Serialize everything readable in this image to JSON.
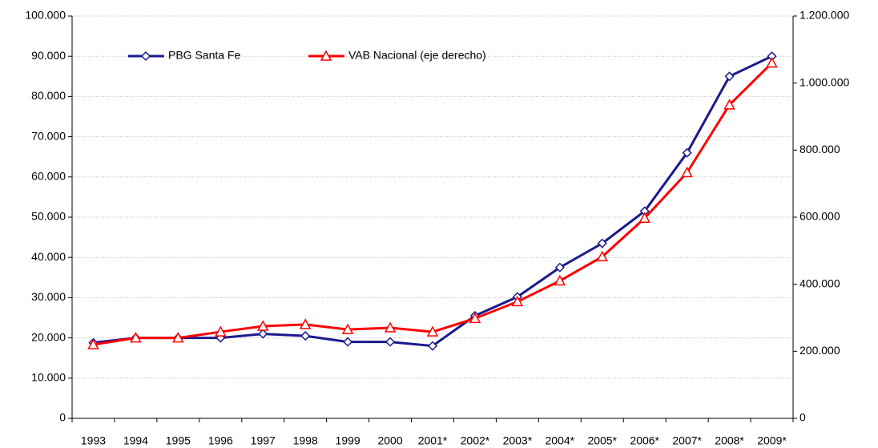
{
  "chart_data": {
    "type": "line",
    "categories": [
      "1993",
      "1994",
      "1995",
      "1996",
      "1997",
      "1998",
      "1999",
      "2000",
      "2001*",
      "2002*",
      "2003*",
      "2004*",
      "2005*",
      "2006*",
      "2007*",
      "2008*",
      "2009*"
    ],
    "series": [
      {
        "name": "PBG Santa Fe",
        "color": "#1a1a8c",
        "marker": "diamond",
        "values": [
          18800,
          20000,
          20000,
          20000,
          21000,
          20500,
          19000,
          19000,
          18000,
          25500,
          30200,
          37500,
          43500,
          51500,
          66000,
          85000,
          90000
        ]
      },
      {
        "name": "VAB Nacional (eje derecho)",
        "color": "#ff0000",
        "marker": "triangle",
        "axis": "y2",
        "values": [
          220000,
          240000,
          240000,
          258000,
          275000,
          280000,
          265000,
          270000,
          258000,
          298000,
          348000,
          410000,
          482000,
          597000,
          733000,
          935000,
          1060000
        ]
      }
    ],
    "ylim": [
      0,
      100000
    ],
    "yticks": [
      0,
      {
        "value": 10000,
        "label": "10.000"
      },
      {
        "value": 20000,
        "label": "20.000"
      },
      {
        "value": 30000,
        "label": "30.000"
      },
      {
        "value": 40000,
        "label": "40.000"
      },
      {
        "value": 50000,
        "label": "50.000"
      },
      {
        "value": 60000,
        "label": "60.000"
      },
      {
        "value": 70000,
        "label": "70.000"
      },
      {
        "value": 80000,
        "label": "80.000"
      },
      {
        "value": 90000,
        "label": "90.000"
      },
      {
        "value": 100000,
        "label": "100.000"
      }
    ],
    "y2lim": [
      0,
      1200000
    ],
    "y2ticks": [
      0,
      {
        "value": 200000,
        "label": "200.000"
      },
      {
        "value": 400000,
        "label": "400.000"
      },
      {
        "value": 600000,
        "label": "600.000"
      },
      {
        "value": 800000,
        "label": "800.000"
      },
      {
        "value": 1000000,
        "label": "1.000.000"
      },
      {
        "value": 1200000,
        "label": "1.200.000"
      }
    ],
    "grid": true,
    "legend": "top-left"
  }
}
